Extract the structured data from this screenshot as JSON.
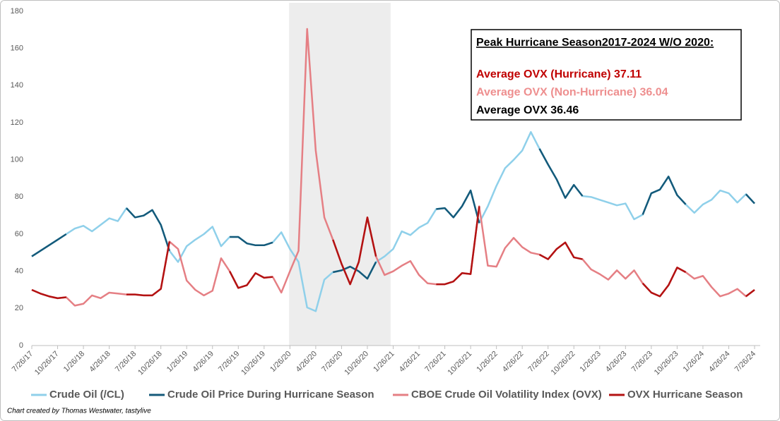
{
  "chart_data": {
    "type": "line",
    "categories": [
      "7/26/17",
      null,
      null,
      "10/26/17",
      null,
      null,
      "1/26/18",
      null,
      null,
      "4/26/18",
      null,
      null,
      "7/26/18",
      null,
      null,
      "10/26/18",
      null,
      null,
      "1/26/19",
      null,
      null,
      "4/26/19",
      null,
      null,
      "7/26/19",
      null,
      null,
      "10/26/19",
      null,
      null,
      "1/26/20",
      null,
      null,
      "4/26/20",
      null,
      null,
      "7/26/20",
      null,
      null,
      "10/26/20",
      null,
      null,
      "1/26/21",
      null,
      null,
      "4/26/21",
      null,
      null,
      "7/26/21",
      null,
      null,
      "10/26/21",
      null,
      null,
      "1/26/22",
      null,
      null,
      "4/26/22",
      null,
      null,
      "7/26/22",
      null,
      null,
      "10/26/22",
      null,
      null,
      "1/26/23",
      null,
      null,
      "4/26/23",
      null,
      null,
      "7/26/23",
      null,
      null,
      "10/26/23",
      null,
      null,
      "1/26/24",
      null,
      null,
      "4/26/24",
      null,
      null,
      "7/26/24"
    ],
    "series": [
      {
        "name": "Crude Oil (/CL)",
        "color": "#8fd0ea",
        "values": [
          48,
          51,
          54,
          57,
          60,
          63,
          64.5,
          61.5,
          65,
          68.5,
          67,
          74,
          69,
          70,
          73,
          65,
          51,
          45,
          53.5,
          57,
          60,
          64,
          53.5,
          58.5,
          58.5,
          55,
          54,
          54,
          55.5,
          61,
          52,
          45,
          20.5,
          18.5,
          35.5,
          39.5,
          40.5,
          42.5,
          40,
          36,
          45,
          48,
          52,
          61.5,
          59.5,
          63.5,
          66,
          73.5,
          74,
          69,
          75,
          83.5,
          66,
          75,
          86,
          95.5,
          100,
          105,
          115,
          106,
          97.5,
          89.5,
          79.5,
          86.5,
          80.5,
          80,
          78.5,
          77,
          75.5,
          76.5,
          68,
          70.5,
          82,
          84,
          91,
          81,
          76,
          71.5,
          76,
          78.5,
          83.5,
          82,
          77,
          81.5,
          76.5
        ]
      },
      {
        "name": "Crude Oil Price During Hurricane Season",
        "color": "#145a7a",
        "values": [
          48,
          51,
          54,
          57,
          60,
          null,
          null,
          null,
          null,
          null,
          null,
          74,
          69,
          70,
          73,
          65,
          51,
          null,
          null,
          null,
          null,
          null,
          null,
          58.5,
          58.5,
          55,
          54,
          54,
          55.5,
          null,
          null,
          null,
          null,
          null,
          null,
          39.5,
          40.5,
          42.5,
          40,
          36,
          45,
          null,
          null,
          null,
          null,
          null,
          null,
          73.5,
          74,
          69,
          75,
          83.5,
          66,
          null,
          null,
          null,
          null,
          null,
          null,
          106,
          97.5,
          89.5,
          79.5,
          86.5,
          80.5,
          null,
          null,
          null,
          null,
          null,
          null,
          70.5,
          82,
          84,
          91,
          81,
          76,
          null,
          null,
          null,
          null,
          null,
          null,
          81.5,
          76.5
        ]
      },
      {
        "name": "CBOE Crude Oil Volatility Index (OVX)",
        "color": "#e57f84",
        "values": [
          30,
          28,
          26.5,
          25.5,
          26,
          21.5,
          22.5,
          27,
          25.5,
          28.5,
          28,
          27.5,
          27.5,
          27,
          27,
          30.5,
          56,
          52,
          35,
          30,
          27,
          29.5,
          47,
          40,
          31,
          32.5,
          39,
          36.5,
          37,
          28.5,
          40,
          51,
          170.5,
          105,
          69,
          57,
          44,
          33,
          45,
          69,
          48,
          38,
          40,
          43,
          45.5,
          38,
          33.5,
          33,
          33,
          34.5,
          39,
          38.5,
          75,
          43,
          42.5,
          52.5,
          58,
          53,
          50,
          49,
          46.5,
          52,
          55.5,
          47.5,
          46.5,
          41,
          38.5,
          35.5,
          40.5,
          36,
          40.5,
          33.5,
          28.5,
          26.5,
          32.5,
          42,
          39.5,
          36,
          37.5,
          31.5,
          26.5,
          28,
          30.5,
          26.5,
          30
        ]
      },
      {
        "name": "OVX Hurricane Season",
        "color": "#b31212",
        "values": [
          30,
          28,
          26.5,
          25.5,
          26,
          null,
          null,
          null,
          null,
          null,
          null,
          27.5,
          27.5,
          27,
          27,
          30.5,
          56,
          null,
          null,
          null,
          null,
          null,
          null,
          40,
          31,
          32.5,
          39,
          36.5,
          37,
          null,
          null,
          null,
          null,
          null,
          null,
          57,
          44,
          33,
          45,
          69,
          48,
          null,
          null,
          null,
          null,
          null,
          null,
          33,
          33,
          34.5,
          39,
          38.5,
          75,
          null,
          null,
          null,
          null,
          null,
          null,
          49,
          46.5,
          52,
          55.5,
          47.5,
          46.5,
          null,
          null,
          null,
          null,
          null,
          null,
          33.5,
          28.5,
          26.5,
          32.5,
          42,
          39.5,
          null,
          null,
          null,
          null,
          null,
          null,
          26.5,
          30
        ]
      }
    ],
    "ylim": [
      0,
      180
    ],
    "yticks": [
      0,
      20,
      40,
      60,
      80,
      100,
      120,
      140,
      160,
      180
    ],
    "grid": false,
    "legend": "bottom",
    "annotation": {
      "title": "Peak Hurricane Season2017-2024 W/O 2020:",
      "lines": [
        {
          "text": "Average OVX (Hurricane) 37.11",
          "color": "#c00000"
        },
        {
          "text": "Average OVX (Non-Hurricane) 36.04",
          "color": "#ee8f8f"
        },
        {
          "text": "Average OVX 36.46",
          "color": "#000000"
        }
      ]
    },
    "credit": "Chart created by Thomas Westwater, tastylive"
  }
}
